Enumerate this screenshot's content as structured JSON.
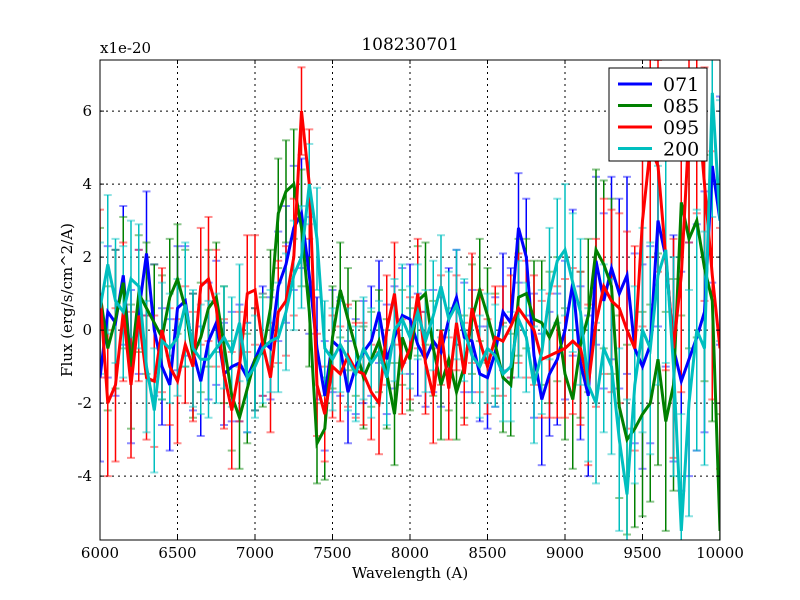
{
  "chart_data": {
    "type": "line",
    "title": "108230701",
    "xlabel": "Wavelength (A)",
    "ylabel": "Flux (erg/s/cm^2/A)",
    "offset_label": "x1e-20",
    "xlim": [
      6000,
      10000
    ],
    "ylim": [
      -5.75,
      7.4
    ],
    "xticks": [
      6000,
      6500,
      7000,
      7500,
      8000,
      8500,
      9000,
      9500,
      10000
    ],
    "yticks": [
      -4,
      -2,
      0,
      2,
      4,
      6
    ],
    "grid": true,
    "legend_position": "top-right",
    "x_start": 6000,
    "x_step": 50,
    "series": [
      {
        "name": "071",
        "color": "#0000ff",
        "values": [
          -1.3,
          0.5,
          0.2,
          1.5,
          -1.0,
          0.5,
          2.1,
          0.0,
          -1.0,
          -1.5,
          0.6,
          0.8,
          -0.6,
          -1.4,
          -0.3,
          0.2,
          -1.2,
          -1.0,
          -0.9,
          -1.3,
          -0.8,
          -0.3,
          -0.5,
          1.2,
          1.8,
          2.8,
          3.2,
          1.5,
          -0.5,
          -1.8,
          -0.3,
          -0.5,
          -1.7,
          -1.0,
          -0.6,
          -0.3,
          0.5,
          -0.8,
          -0.2,
          0.4,
          0.3,
          -0.4,
          -0.8,
          -0.3,
          -0.6,
          0.3,
          0.9,
          -0.2,
          -0.3,
          -1.2,
          -1.3,
          -0.6,
          0.5,
          0.2,
          2.8,
          2.0,
          -0.7,
          -1.9,
          -1.2,
          -0.8,
          0.0,
          1.3,
          -0.9,
          -1.8,
          1.9,
          0.8,
          1.7,
          1.0,
          1.5,
          -0.5,
          -1.0,
          -0.4,
          3.0,
          2.0,
          -0.5,
          -1.4,
          -0.8,
          -0.2,
          0.5,
          4.5,
          3.0
        ],
        "errors": [
          2.3,
          1.8,
          2.0,
          1.9,
          2.1,
          1.7,
          1.7,
          1.8,
          1.6,
          1.8,
          1.7,
          1.5,
          1.6,
          1.5,
          1.6,
          1.7,
          1.4,
          1.5,
          1.6,
          1.5,
          1.4,
          1.5,
          1.4,
          1.5,
          1.6,
          1.7,
          1.5,
          1.6,
          1.4,
          1.5,
          1.4,
          1.3,
          1.4,
          1.3,
          1.4,
          1.5,
          1.4,
          1.5,
          1.4,
          1.3,
          1.5,
          1.4,
          1.3,
          1.4,
          1.5,
          1.4,
          1.3,
          1.5,
          1.4,
          1.3,
          1.4,
          1.5,
          1.6,
          1.5,
          1.5,
          1.6,
          1.7,
          1.8,
          1.7,
          1.8,
          1.9,
          2.0,
          2.1,
          2.2,
          2.3,
          2.4,
          2.5,
          2.6,
          2.7,
          2.6,
          2.8,
          2.7,
          2.9,
          3.0,
          3.1,
          3.0,
          3.2,
          3.1,
          3.3,
          3.2,
          3.4
        ]
      },
      {
        "name": "085",
        "color": "#008000",
        "values": [
          1.0,
          -0.5,
          0.3,
          1.3,
          -1.0,
          1.0,
          0.6,
          0.2,
          -0.2,
          0.9,
          1.4,
          0.6,
          -0.7,
          -0.2,
          0.6,
          0.9,
          -0.4,
          -1.8,
          -2.4,
          -1.6,
          -0.8,
          -0.6,
          0.6,
          3.2,
          3.8,
          4.0,
          2.8,
          0.5,
          -3.1,
          -2.7,
          -0.2,
          1.1,
          0.3,
          -0.5,
          -1.3,
          -0.8,
          -0.3,
          -1.2,
          -2.3,
          -0.2,
          -0.8,
          0.8,
          1.0,
          -0.5,
          -1.5,
          -0.8,
          -1.7,
          -1.0,
          0.3,
          1.1,
          0.4,
          -0.4,
          -1.3,
          -1.5,
          0.9,
          1.0,
          0.3,
          0.2,
          -0.2,
          0.3,
          -1.2,
          -1.9,
          -0.4,
          0.4,
          2.2,
          1.8,
          1.2,
          -2.1,
          -3.0,
          -2.7,
          -2.3,
          -2.0,
          -0.8,
          -2.5,
          -1.5,
          3.5,
          2.5,
          3.0,
          1.7,
          0.8,
          -5.5
        ],
        "errors": [
          1.8,
          1.7,
          1.9,
          1.8,
          1.7,
          1.6,
          1.8,
          1.6,
          1.7,
          1.6,
          1.5,
          1.6,
          1.7,
          1.5,
          1.6,
          1.5,
          1.6,
          1.5,
          1.4,
          1.5,
          1.4,
          1.5,
          1.6,
          1.5,
          1.4,
          1.5,
          1.6,
          1.5,
          1.1,
          1.4,
          1.4,
          1.3,
          1.4,
          1.3,
          1.4,
          1.3,
          1.4,
          1.5,
          1.4,
          1.3,
          1.4,
          1.5,
          1.4,
          1.3,
          1.5,
          1.4,
          1.3,
          1.4,
          1.5,
          1.4,
          1.3,
          1.4,
          1.5,
          1.4,
          1.6,
          1.5,
          1.6,
          1.7,
          1.8,
          1.7,
          1.8,
          1.9,
          2.0,
          2.1,
          2.2,
          2.3,
          2.4,
          2.5,
          2.6,
          2.7,
          2.8,
          2.7,
          2.9,
          3.0,
          2.9,
          3.1,
          3.0,
          3.2,
          3.1,
          3.3,
          3.2
        ]
      },
      {
        "name": "095",
        "color": "#ff0000",
        "values": [
          1.0,
          -2.0,
          -1.5,
          0.5,
          -1.5,
          0.4,
          -1.3,
          -1.4,
          0.0,
          -1.0,
          -1.4,
          -0.4,
          -1.0,
          1.2,
          1.4,
          0.6,
          -1.2,
          -2.2,
          -1.0,
          1.0,
          1.1,
          -0.4,
          -1.3,
          0.5,
          0.8,
          2.0,
          6.0,
          4.0,
          -1.5,
          -2.3,
          -1.0,
          -1.2,
          -0.7,
          -1.1,
          -1.2,
          -1.7,
          -2.0,
          0.0,
          1.0,
          -1.0,
          -0.5,
          1.0,
          -0.9,
          -1.8,
          0.0,
          -1.6,
          0.2,
          -1.2,
          0.6,
          -0.3,
          -1.0,
          -0.2,
          -0.3,
          0.1,
          0.6,
          0.3,
          0.0,
          -0.8,
          -0.7,
          -0.6,
          -0.5,
          -0.3,
          -0.5,
          -1.5,
          0.2,
          1.2,
          0.8,
          0.6,
          0.0,
          -0.5,
          3.0,
          5.0,
          4.5,
          2.0,
          -0.5,
          1.5,
          5.5,
          6.5,
          4.0,
          1.5,
          -0.5
        ],
        "errors": [
          2.3,
          2.0,
          2.1,
          1.9,
          2.0,
          1.8,
          1.7,
          1.8,
          1.7,
          1.6,
          1.7,
          1.6,
          1.5,
          1.6,
          1.7,
          1.6,
          1.5,
          1.6,
          1.5,
          1.6,
          1.5,
          1.4,
          1.5,
          1.4,
          1.5,
          1.6,
          1.2,
          1.5,
          1.4,
          1.3,
          1.4,
          1.3,
          1.4,
          1.3,
          1.4,
          1.3,
          1.4,
          1.5,
          1.4,
          1.3,
          1.4,
          1.5,
          1.4,
          1.3,
          1.5,
          1.4,
          1.3,
          1.4,
          1.5,
          1.4,
          1.3,
          1.4,
          1.5,
          1.4,
          1.5,
          1.6,
          1.5,
          1.6,
          1.7,
          1.8,
          1.9,
          2.0,
          2.1,
          2.2,
          2.3,
          2.4,
          2.5,
          2.6,
          2.7,
          2.8,
          2.9,
          3.0,
          2.9,
          3.1,
          3.0,
          3.2,
          3.1,
          3.3,
          3.2,
          3.4,
          3.3
        ]
      },
      {
        "name": "200",
        "color": "#00bfbf",
        "values": [
          0.6,
          1.8,
          0.8,
          0.5,
          1.4,
          1.2,
          -1.0,
          -2.2,
          -0.3,
          -0.5,
          -0.2,
          0.7,
          -0.5,
          -0.8,
          -0.8,
          -0.5,
          -0.2,
          -0.6,
          0.2,
          -1.3,
          -1.0,
          -0.5,
          -0.3,
          -0.2,
          0.5,
          1.5,
          2.0,
          4.0,
          2.5,
          -0.5,
          -0.8,
          -0.4,
          -0.8,
          -1.2,
          -0.5,
          -0.9,
          -0.6,
          -1.3,
          0.0,
          0.3,
          -0.2,
          0.5,
          -0.3,
          0.4,
          1.2,
          0.3,
          0.7,
          0.0,
          -0.7,
          -1.0,
          -0.5,
          -0.7,
          -1.2,
          -1.0,
          0.3,
          -0.2,
          -1.5,
          -0.6,
          1.0,
          1.9,
          2.2,
          1.3,
          0.5,
          -1.5,
          -2.0,
          -0.5,
          -1.0,
          -3.0,
          -4.5,
          -1.5,
          0.0,
          -0.5,
          1.5,
          2.2,
          -1.0,
          -5.5,
          -2.0,
          0.0,
          -0.5,
          6.5,
          3.0
        ],
        "errors": [
          1.8,
          1.9,
          1.7,
          1.8,
          1.6,
          1.7,
          1.8,
          1.7,
          1.6,
          1.5,
          1.6,
          1.7,
          1.6,
          1.5,
          1.6,
          1.5,
          1.4,
          1.5,
          1.6,
          1.5,
          1.4,
          1.5,
          1.4,
          1.5,
          1.6,
          1.5,
          1.4,
          1.1,
          1.4,
          1.3,
          1.4,
          1.3,
          1.4,
          1.3,
          1.4,
          1.5,
          1.4,
          1.3,
          1.4,
          1.5,
          1.4,
          1.3,
          1.4,
          1.5,
          1.4,
          1.3,
          1.5,
          1.4,
          1.3,
          1.4,
          1.5,
          1.4,
          1.3,
          1.5,
          1.6,
          1.5,
          1.6,
          1.7,
          1.8,
          1.7,
          1.8,
          1.9,
          2.0,
          2.1,
          2.2,
          2.3,
          2.4,
          2.5,
          2.6,
          2.7,
          2.8,
          2.9,
          3.0,
          3.1,
          3.0,
          3.2,
          3.1,
          3.3,
          3.2,
          3.4,
          3.3
        ]
      }
    ]
  }
}
